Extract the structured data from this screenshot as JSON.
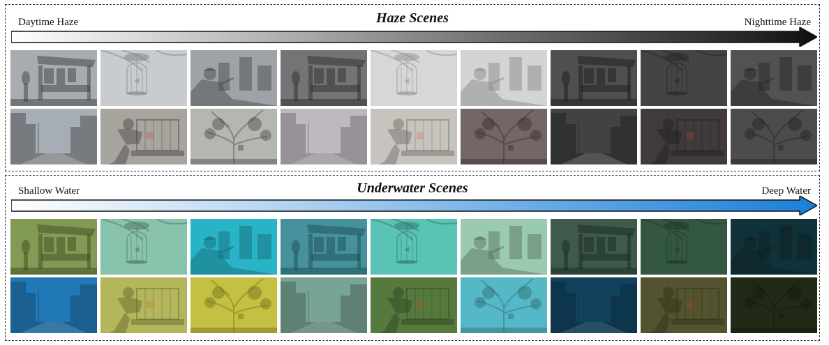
{
  "haze": {
    "title": "Haze Scenes",
    "left_label": "Daytime Haze",
    "right_label": "Nighttime Haze",
    "arrow_colors": [
      "#ffffff",
      "#111111"
    ],
    "rows": [
      [
        {
          "scene": "market-stall",
          "base": "#7a7f86",
          "tint": "#cfd2d6",
          "tint_opacity": 0.25
        },
        {
          "scene": "birdcage",
          "base": "#b9bcbf",
          "tint": "#d6d8da",
          "tint_opacity": 0.55
        },
        {
          "scene": "man-buildings",
          "base": "#8e9298",
          "tint": "#c0c3c7",
          "tint_opacity": 0.35
        },
        {
          "scene": "market-stall",
          "base": "#4b4c4f",
          "tint": "#6b6c6e",
          "tint_opacity": 0.35
        },
        {
          "scene": "birdcage",
          "base": "#c5c7c9",
          "tint": "#e1e2e3",
          "tint_opacity": 0.6
        },
        {
          "scene": "man-buildings",
          "base": "#c4c6c8",
          "tint": "#dcdddf",
          "tint_opacity": 0.6
        },
        {
          "scene": "market-stall",
          "base": "#262728",
          "tint": "#3a3b3c",
          "tint_opacity": 0.4
        },
        {
          "scene": "birdcage",
          "base": "#3c3d3e",
          "tint": "#505152",
          "tint_opacity": 0.4
        },
        {
          "scene": "man-buildings",
          "base": "#4a4b4d",
          "tint": "#5c5d5f",
          "tint_opacity": 0.4
        }
      ],
      [
        {
          "scene": "street",
          "base": "#9aa0a8",
          "tint": "#c8ccd2",
          "tint_opacity": 0.3
        },
        {
          "scene": "man-cage",
          "base": "#9a9690",
          "tint": "#c4c0ba",
          "tint_opacity": 0.35
        },
        {
          "scene": "tree",
          "base": "#a7aaa4",
          "tint": "#cfd1cc",
          "tint_opacity": 0.35
        },
        {
          "scene": "street",
          "base": "#aca6b0",
          "tint": "#cfcad2",
          "tint_opacity": 0.5
        },
        {
          "scene": "man-cage",
          "base": "#b9b5ae",
          "tint": "#d6d3ce",
          "tint_opacity": 0.5
        },
        {
          "scene": "tree",
          "base": "#6a5a58",
          "tint": "#85787a",
          "tint_opacity": 0.4
        },
        {
          "scene": "street",
          "base": "#3a3c3a",
          "tint": "#4c4e4c",
          "tint_opacity": 0.4
        },
        {
          "scene": "man-cage",
          "base": "#3a3236",
          "tint": "#4e4549",
          "tint_opacity": 0.4
        },
        {
          "scene": "tree",
          "base": "#454545",
          "tint": "#575757",
          "tint_opacity": 0.4
        }
      ]
    ]
  },
  "water": {
    "title": "Underwater Scenes",
    "left_label": "Shallow Water",
    "right_label": "Deep Water",
    "arrow_colors": [
      "#ffffff",
      "#1a7fd8"
    ],
    "rows": [
      [
        {
          "scene": "market-stall",
          "base": "#5f7a3a",
          "tint": "#7c9a3c",
          "tint_opacity": 0.45
        },
        {
          "scene": "birdcage",
          "base": "#7fb8a2",
          "tint": "#8fd0b4",
          "tint_opacity": 0.5
        },
        {
          "scene": "man-buildings",
          "base": "#2aa5b8",
          "tint": "#26c0d4",
          "tint_opacity": 0.55
        },
        {
          "scene": "market-stall",
          "base": "#2f6f7a",
          "tint": "#2b8f9e",
          "tint_opacity": 0.5
        },
        {
          "scene": "birdcage",
          "base": "#55b8a8",
          "tint": "#5ed0bd",
          "tint_opacity": 0.5
        },
        {
          "scene": "man-buildings",
          "base": "#8fbfa6",
          "tint": "#a6d6bb",
          "tint_opacity": 0.5
        },
        {
          "scene": "market-stall",
          "base": "#1f3a2c",
          "tint": "#274a36",
          "tint_opacity": 0.5
        },
        {
          "scene": "birdcage",
          "base": "#2f4f3c",
          "tint": "#3a6049",
          "tint_opacity": 0.5
        },
        {
          "scene": "man-buildings",
          "base": "#0f2a30",
          "tint": "#143640",
          "tint_opacity": 0.55
        }
      ],
      [
        {
          "scene": "street",
          "base": "#1f6fa8",
          "tint": "#2283c4",
          "tint_opacity": 0.5
        },
        {
          "scene": "man-cage",
          "base": "#a7a95a",
          "tint": "#c2c45c",
          "tint_opacity": 0.5
        },
        {
          "scene": "tree",
          "base": "#b6b34a",
          "tint": "#cdca3c",
          "tint_opacity": 0.55
        },
        {
          "scene": "street",
          "base": "#6f9a8a",
          "tint": "#82ae9c",
          "tint_opacity": 0.5
        },
        {
          "scene": "man-cage",
          "base": "#4f6f3a",
          "tint": "#5e8441",
          "tint_opacity": 0.5
        },
        {
          "scene": "tree",
          "base": "#4fa8b8",
          "tint": "#5ac4d2",
          "tint_opacity": 0.55
        },
        {
          "scene": "street",
          "base": "#0f3a55",
          "tint": "#124866",
          "tint_opacity": 0.55
        },
        {
          "scene": "man-cage",
          "base": "#4a4a2c",
          "tint": "#5c5c32",
          "tint_opacity": 0.5
        },
        {
          "scene": "tree",
          "base": "#1c2414",
          "tint": "#252f1a",
          "tint_opacity": 0.55
        }
      ]
    ]
  }
}
